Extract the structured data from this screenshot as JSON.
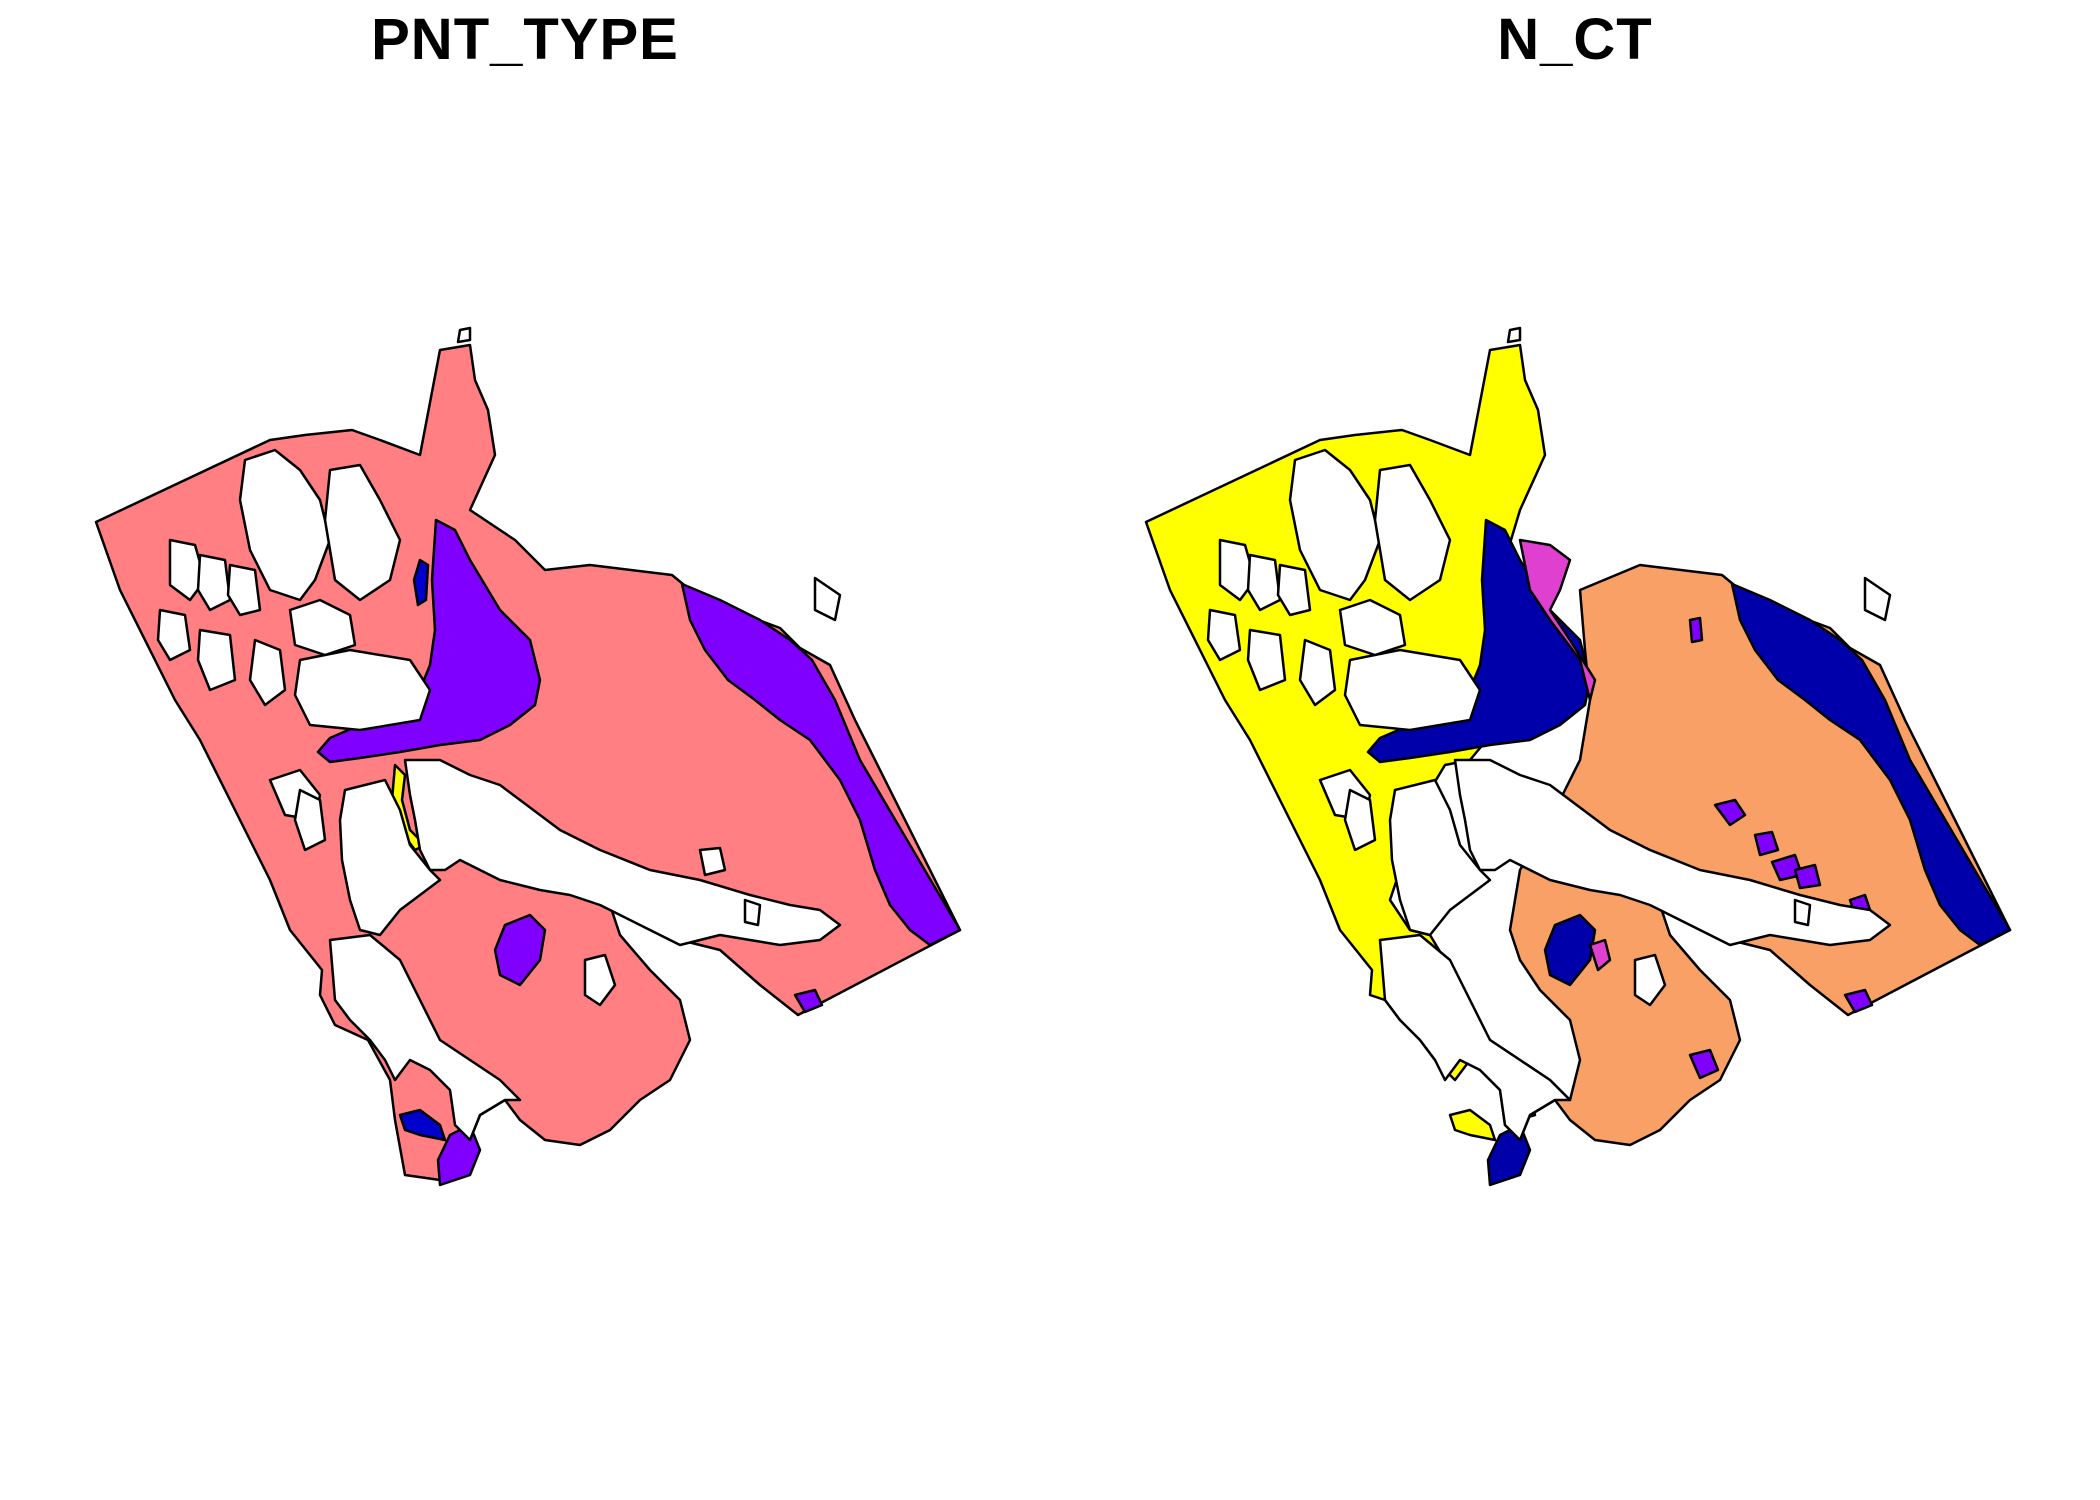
{
  "maps": [
    {
      "title": "PNT_TYPE",
      "colors": {
        "base": "#FF7F82",
        "east": "#8000FF",
        "yellow": "#FFFF00",
        "blue": "#0000CC",
        "small": "#8000FF"
      }
    },
    {
      "title": "N_CT",
      "colors": {
        "base": "#FFFF00",
        "east": "#0000AA",
        "yellow": "#FFFF00",
        "blue": "#0000AA",
        "small": "#8000FF",
        "central": "#F9A066",
        "pink": "#E040D0"
      }
    }
  ]
}
